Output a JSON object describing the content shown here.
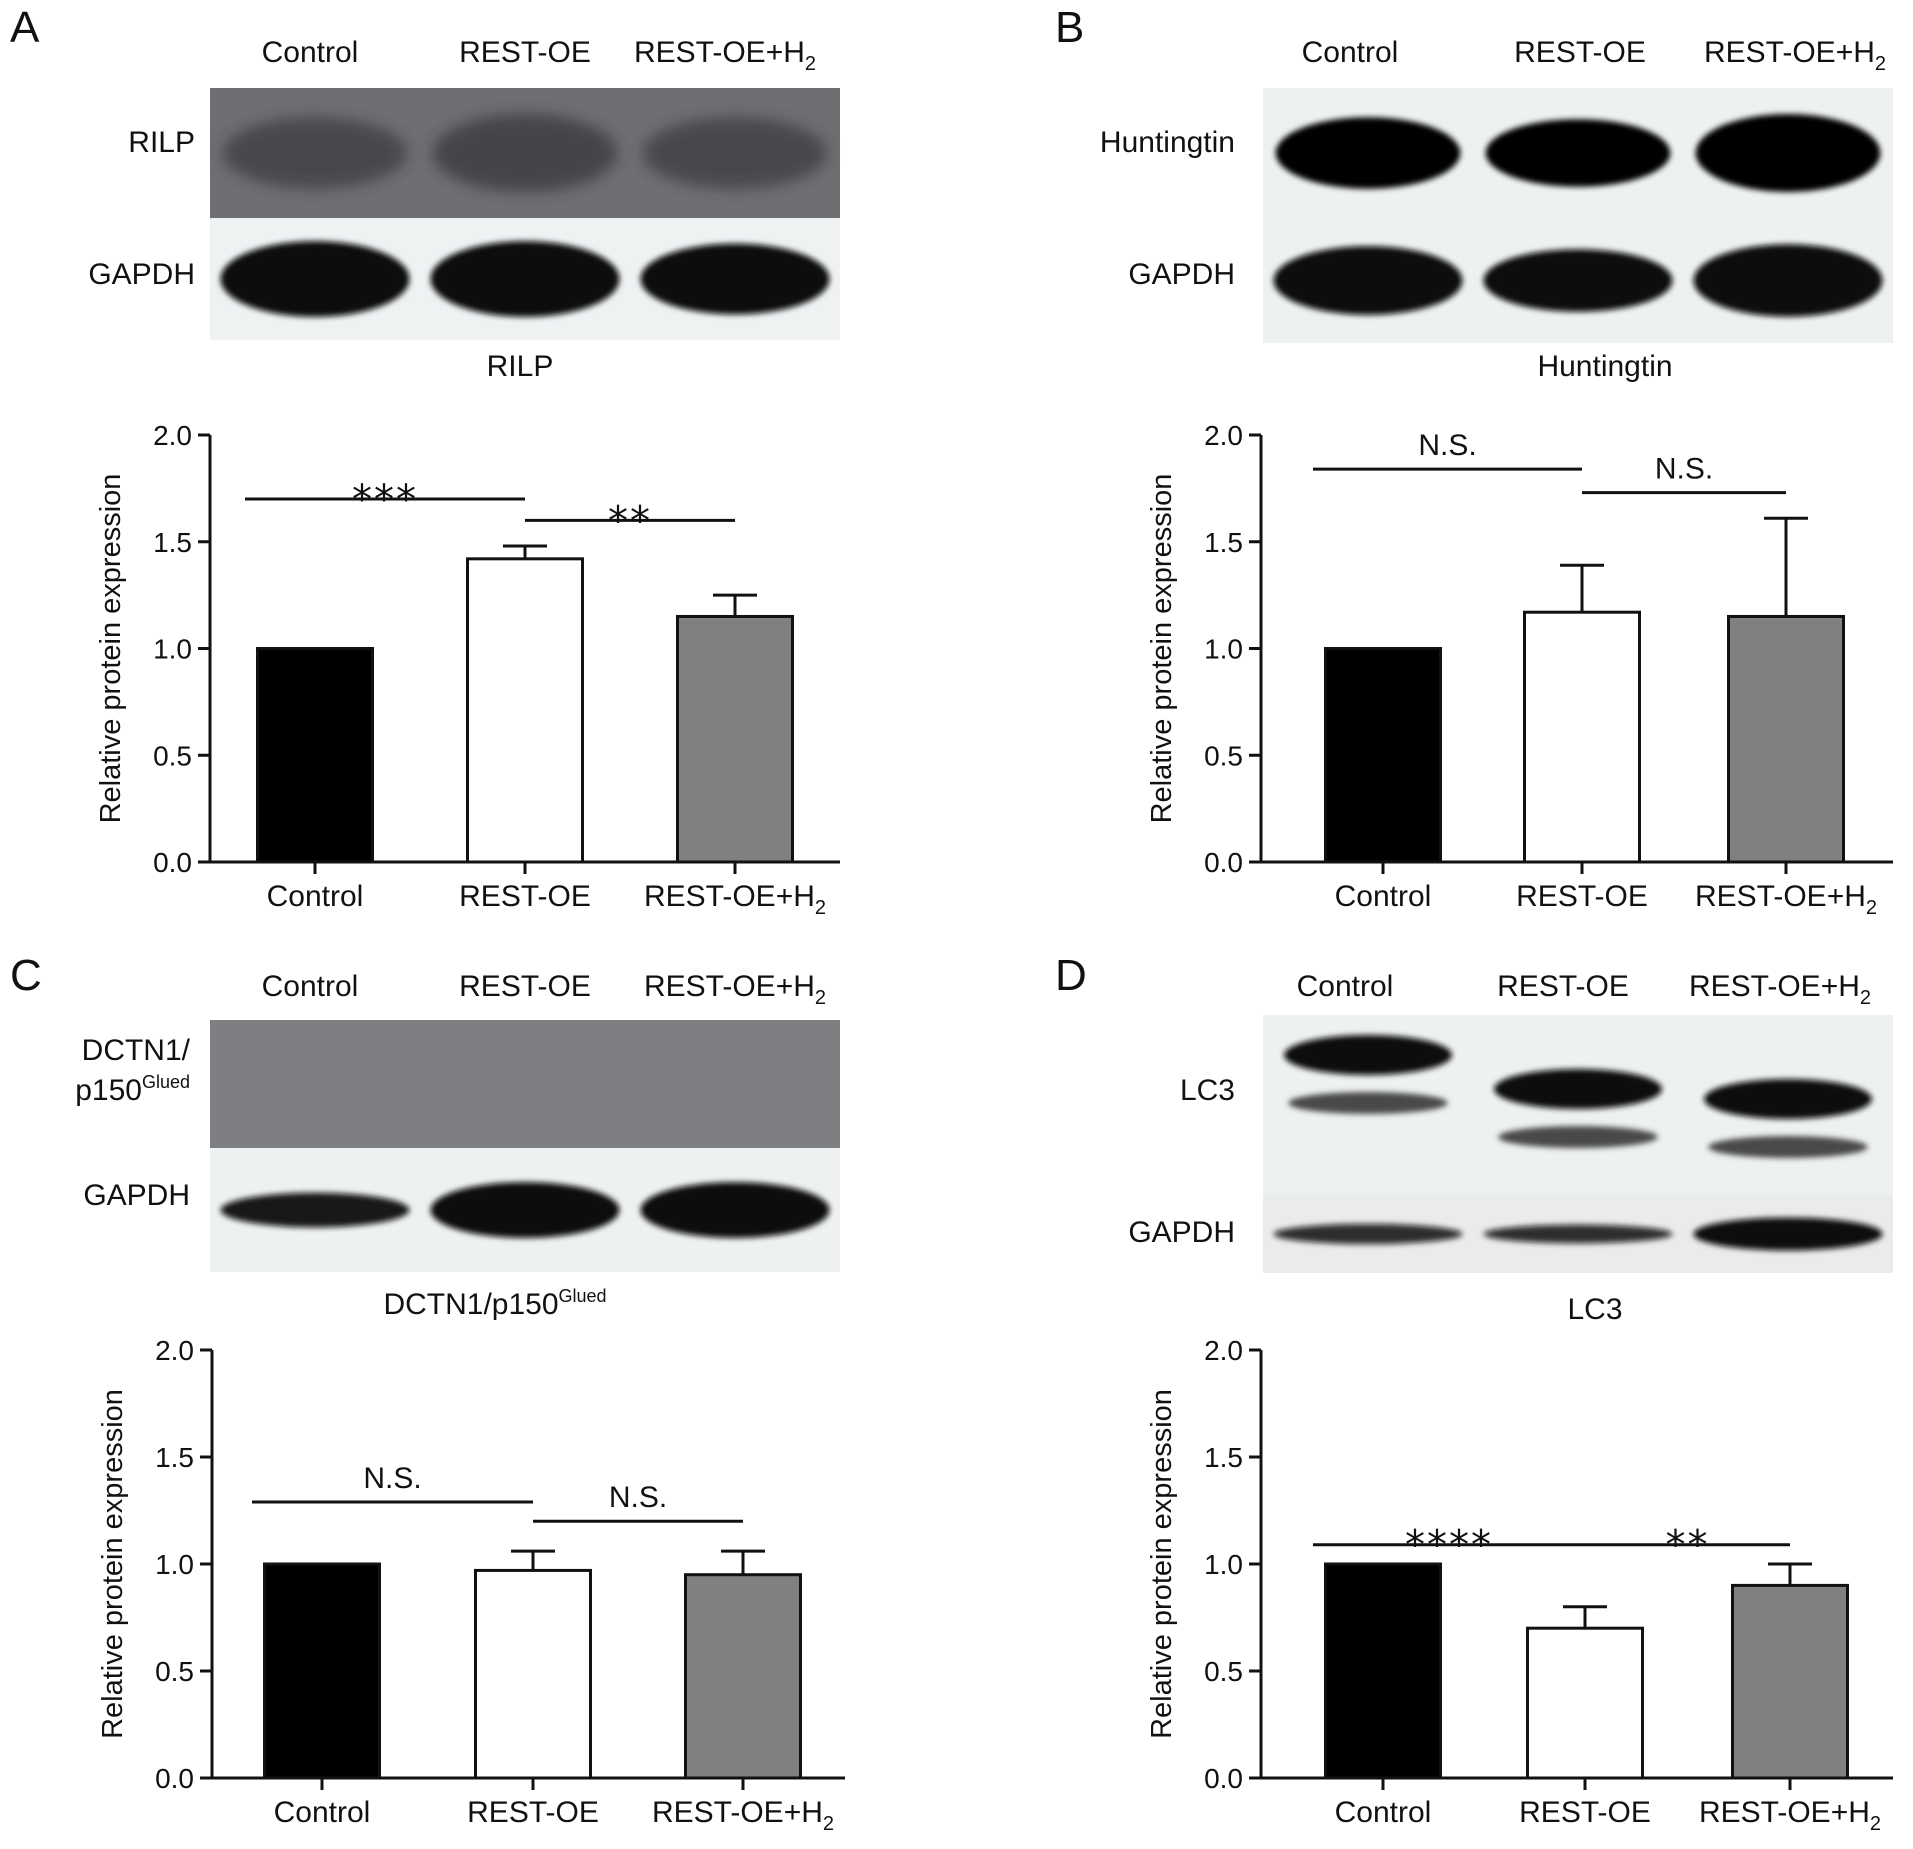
{
  "panels": [
    {
      "letter": "A",
      "blot": {
        "lanes": [
          "Control",
          "REST-OE",
          "REST-OE+H",
          "2"
        ],
        "rows": [
          {
            "label": "RILP",
            "label_sup": ""
          },
          {
            "label": "GAPDH",
            "label_sup": ""
          }
        ]
      },
      "chart_title": "RILP",
      "chart_title_sup": ""
    },
    {
      "letter": "B",
      "blot": {
        "lanes": [
          "Control",
          "REST-OE",
          "REST-OE+H",
          "2"
        ],
        "rows": [
          {
            "label": "Huntingtin",
            "label_sup": ""
          },
          {
            "label": "GAPDH",
            "label_sup": ""
          }
        ]
      },
      "chart_title": "Huntingtin",
      "chart_title_sup": ""
    },
    {
      "letter": "C",
      "blot": {
        "lanes": [
          "Control",
          "REST-OE",
          "REST-OE+H",
          "2"
        ],
        "rows": [
          {
            "label": "DCTN1/",
            "label2": "p150",
            "label_sup": "Glued"
          },
          {
            "label": "GAPDH",
            "label_sup": ""
          }
        ]
      },
      "chart_title": "DCTN1/p150",
      "chart_title_sup": "Glued"
    },
    {
      "letter": "D",
      "blot": {
        "lanes": [
          "Control",
          "REST-OE",
          "REST-OE+H",
          "2"
        ],
        "rows": [
          {
            "label": "LC3",
            "label_sup": ""
          },
          {
            "label": "GAPDH",
            "label_sup": ""
          }
        ]
      },
      "chart_title": "LC3",
      "chart_title_sup": ""
    }
  ],
  "chart_data": [
    {
      "type": "bar",
      "panel": "A",
      "title": "RILP",
      "ylabel": "Relative protein expression",
      "ylim": [
        0,
        2.0
      ],
      "yticks": [
        "0.0",
        "0.5",
        "1.0",
        "1.5",
        "2.0"
      ],
      "categories": [
        "Control",
        "REST-OE",
        "REST-OE+H₂"
      ],
      "values": [
        1.0,
        1.42,
        1.15
      ],
      "errors": [
        0,
        0.06,
        0.1
      ],
      "bar_colors": [
        "#000000",
        "#ffffff",
        "#808080"
      ],
      "significance": [
        {
          "from": 0,
          "to": 1,
          "y": 1.7,
          "label": "***"
        },
        {
          "from": 1,
          "to": 2,
          "y": 1.6,
          "label": "**"
        }
      ]
    },
    {
      "type": "bar",
      "panel": "B",
      "title": "Huntingtin",
      "ylabel": "Relative protein expression",
      "ylim": [
        0,
        2.0
      ],
      "yticks": [
        "0.0",
        "0.5",
        "1.0",
        "1.5",
        "2.0"
      ],
      "categories": [
        "Control",
        "REST-OE",
        "REST-OE+H₂"
      ],
      "values": [
        1.0,
        1.17,
        1.15
      ],
      "errors": [
        0,
        0.22,
        0.46
      ],
      "bar_colors": [
        "#000000",
        "#ffffff",
        "#808080"
      ],
      "significance": [
        {
          "from": 0,
          "to": 1,
          "y": 1.84,
          "label": "N.S."
        },
        {
          "from": 1,
          "to": 2,
          "y": 1.73,
          "label": "N.S."
        }
      ]
    },
    {
      "type": "bar",
      "panel": "C",
      "title": "DCTN1/p150Glued",
      "ylabel": "Relative protein expression",
      "ylim": [
        0,
        2.0
      ],
      "yticks": [
        "0.0",
        "0.5",
        "1.0",
        "1.5",
        "2.0"
      ],
      "categories": [
        "Control",
        "REST-OE",
        "REST-OE+H₂"
      ],
      "values": [
        1.0,
        0.97,
        0.95
      ],
      "errors": [
        0,
        0.09,
        0.11
      ],
      "bar_colors": [
        "#000000",
        "#ffffff",
        "#808080"
      ],
      "significance": [
        {
          "from": 0,
          "to": 1,
          "y": 1.29,
          "label": "N.S."
        },
        {
          "from": 1,
          "to": 2,
          "y": 1.2,
          "label": "N.S."
        }
      ]
    },
    {
      "type": "bar",
      "panel": "D",
      "title": "LC3",
      "ylabel": "Relative protein expression",
      "ylim": [
        0,
        2.0
      ],
      "yticks": [
        "0.0",
        "0.5",
        "1.0",
        "1.5",
        "2.0"
      ],
      "categories": [
        "Control",
        "REST-OE",
        "REST-OE+H₂"
      ],
      "values": [
        1.0,
        0.7,
        0.9
      ],
      "errors": [
        0,
        0.1,
        0.1
      ],
      "bar_colors": [
        "#000000",
        "#ffffff",
        "#808080"
      ],
      "significance": [
        {
          "from": 0,
          "to": 1,
          "y": 1.09,
          "label": "****"
        },
        {
          "from": 1,
          "to": 2,
          "y": 1.09,
          "label": "**"
        }
      ]
    }
  ]
}
